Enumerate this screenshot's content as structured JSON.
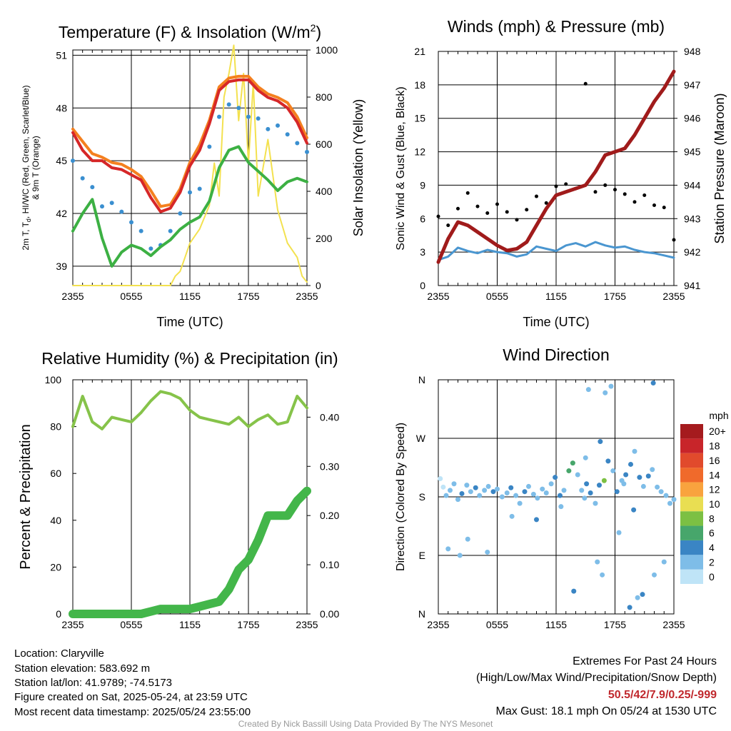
{
  "colors": {
    "temp": "#d62728",
    "dew": "#3cb043",
    "hi": "#3a8fd0",
    "t9": "#f4801f",
    "solar": "#f3e14f",
    "wind": "#4a96d0",
    "gust": "#000000",
    "pressure": "#a01b1b",
    "rh": "#86c34a",
    "precip": "#43b64a",
    "extremes": "#c0282d",
    "footer": "#999999"
  },
  "chart_data": [
    {
      "type": "line",
      "title_main": "Temperature (F) & Insolation (W/m",
      "title_sup": "2",
      "title_end": ")",
      "xlabel": "Time (UTC)",
      "ylabel_left_line1": "2m T, T",
      "ylabel_left_sub": "d",
      "ylabel_left_line1b": ", HI/WC (Red, Green, Scarlet/Blue)",
      "ylabel_left_line2": "& 9m T (Orange)",
      "ylabel_right": "Solar Insolation (Yellow)",
      "xticks": [
        "2355",
        "0555",
        "1155",
        "1755",
        "2355"
      ],
      "yticks_left": [
        "39",
        "42",
        "45",
        "48",
        "51"
      ],
      "yticks_right": [
        "0",
        "200",
        "400",
        "600",
        "800",
        "1000"
      ],
      "ylim_left": [
        37.9,
        51.3
      ],
      "ylim_right": [
        0,
        1000
      ],
      "series": [
        {
          "key": "temp",
          "x": [
            0,
            1,
            2,
            3,
            4,
            5,
            6,
            7,
            8,
            9,
            10,
            11,
            12,
            13,
            14,
            15,
            16,
            17,
            18,
            19,
            20,
            21,
            22,
            23,
            24
          ],
          "values": [
            46.6,
            45.6,
            45.0,
            45.0,
            44.6,
            44.5,
            44.2,
            43.9,
            42.9,
            42.1,
            42.3,
            43.2,
            44.7,
            45.6,
            47.1,
            49.0,
            49.5,
            49.6,
            49.6,
            49.0,
            48.6,
            48.4,
            48.0,
            47.2,
            46.0
          ]
        },
        {
          "key": "t9",
          "x": [
            0,
            1,
            2,
            3,
            4,
            5,
            6,
            7,
            8,
            9,
            10,
            11,
            12,
            13,
            14,
            15,
            16,
            17,
            18,
            19,
            20,
            21,
            22,
            23,
            24
          ],
          "values": [
            46.8,
            46.1,
            45.4,
            45.2,
            44.9,
            44.8,
            44.5,
            44.1,
            43.3,
            42.4,
            42.5,
            43.4,
            44.9,
            45.9,
            47.3,
            49.2,
            49.7,
            49.8,
            49.8,
            49.2,
            48.8,
            48.6,
            48.3,
            47.5,
            46.3
          ]
        },
        {
          "key": "hi",
          "x": [
            0,
            1,
            2,
            3,
            4,
            5,
            6,
            7,
            8,
            9,
            10,
            11,
            12,
            13,
            14,
            15,
            16,
            17,
            18,
            19,
            20,
            21,
            22,
            23,
            24
          ],
          "values": [
            45.0,
            44.0,
            43.5,
            42.4,
            42.6,
            42.1,
            41.5,
            41.0,
            40.0,
            40.2,
            41.0,
            42.0,
            43.2,
            43.4,
            45.8,
            47.5,
            48.2,
            48.0,
            47.5,
            47.4,
            46.8,
            47.0,
            46.5,
            46.0,
            45.5
          ]
        },
        {
          "key": "dew",
          "x": [
            0,
            1,
            2,
            3,
            4,
            5,
            6,
            7,
            8,
            9,
            10,
            11,
            12,
            13,
            14,
            15,
            16,
            17,
            18,
            19,
            20,
            21,
            22,
            23,
            24
          ],
          "values": [
            41.0,
            42.0,
            42.8,
            40.6,
            39.0,
            39.8,
            40.2,
            40.0,
            39.6,
            40.1,
            40.5,
            41.1,
            41.5,
            41.8,
            42.7,
            44.6,
            45.6,
            45.8,
            44.9,
            44.4,
            43.9,
            43.3,
            43.8,
            44.0,
            43.8
          ]
        },
        {
          "key": "solar",
          "axis": "right",
          "x": [
            0,
            8,
            10,
            10.5,
            11,
            11.5,
            12,
            13,
            14,
            14.5,
            15,
            15.5,
            16,
            16.5,
            17,
            17.5,
            18,
            18.5,
            19,
            20,
            21,
            22,
            23,
            23.5,
            24
          ],
          "values": [
            0,
            0,
            0,
            40,
            60,
            120,
            180,
            240,
            340,
            520,
            380,
            800,
            900,
            1020,
            700,
            900,
            520,
            860,
            380,
            620,
            320,
            180,
            120,
            40,
            15
          ]
        }
      ]
    },
    {
      "type": "line",
      "title": "Winds (mph) & Pressure (mb)",
      "xlabel": "Time (UTC)",
      "ylabel_left": "Sonic Wind & Gust (Blue, Black)",
      "ylabel_right": "Station Pressure (Maroon)",
      "xticks": [
        "2355",
        "0555",
        "1155",
        "1755",
        "2355"
      ],
      "yticks_left": [
        "0",
        "3",
        "6",
        "9",
        "12",
        "15",
        "18",
        "21"
      ],
      "yticks_right": [
        "941",
        "942",
        "943",
        "944",
        "945",
        "946",
        "947",
        "948"
      ],
      "ylim_left": [
        0,
        21
      ],
      "ylim_right": [
        941,
        948
      ],
      "series": [
        {
          "key": "wind",
          "x": [
            0,
            1,
            2,
            3,
            4,
            5,
            6,
            7,
            8,
            9,
            10,
            11,
            12,
            13,
            14,
            15,
            16,
            17,
            18,
            19,
            20,
            21,
            22,
            23,
            24
          ],
          "values": [
            2.3,
            2.6,
            3.4,
            3.1,
            2.9,
            3.2,
            3.0,
            2.9,
            2.6,
            2.8,
            3.5,
            3.3,
            3.1,
            3.6,
            3.8,
            3.5,
            3.9,
            3.6,
            3.4,
            3.5,
            3.2,
            3.0,
            2.9,
            2.7,
            2.5
          ]
        },
        {
          "key": "gust",
          "x": [
            0,
            1,
            2,
            3,
            4,
            5,
            6,
            7,
            8,
            9,
            10,
            11,
            12,
            13,
            14,
            15,
            16,
            17,
            18,
            19,
            20,
            21,
            22,
            23,
            24
          ],
          "values": [
            6.2,
            5.4,
            6.9,
            8.3,
            7.1,
            6.5,
            7.3,
            6.6,
            5.9,
            6.8,
            8.0,
            7.4,
            8.9,
            9.1,
            8.7,
            18.1,
            8.4,
            9.0,
            8.6,
            8.2,
            7.5,
            8.1,
            7.2,
            7.0,
            4.1
          ]
        },
        {
          "key": "pressure",
          "axis": "right",
          "x": [
            0,
            1,
            2,
            3,
            4,
            5,
            6,
            7,
            8,
            9,
            10,
            11,
            12,
            13,
            14,
            15,
            16,
            17,
            18,
            19,
            20,
            21,
            22,
            23,
            24
          ],
          "values": [
            941.7,
            942.4,
            942.9,
            942.8,
            942.6,
            942.4,
            942.2,
            942.05,
            942.1,
            942.3,
            942.8,
            943.3,
            943.7,
            943.8,
            943.9,
            944.0,
            944.4,
            944.9,
            945.0,
            945.1,
            945.5,
            946.0,
            946.5,
            946.9,
            947.4
          ]
        }
      ]
    },
    {
      "type": "line",
      "title": "Relative Humidity (%) & Precipitation (in)",
      "ylabel_left": "Percent & Precipitation",
      "xticks": [
        "2355",
        "0555",
        "1155",
        "1755",
        "2355"
      ],
      "yticks_left": [
        "0",
        "20",
        "40",
        "60",
        "80",
        "100"
      ],
      "yticks_right": [
        "0.00",
        "0.10",
        "0.20",
        "0.30",
        "0.40"
      ],
      "ylim_left": [
        0,
        100
      ],
      "ylim_right": [
        0,
        0.476
      ],
      "series": [
        {
          "key": "rh",
          "x": [
            0,
            1,
            2,
            3,
            4,
            5,
            6,
            7,
            8,
            9,
            10,
            11,
            12,
            13,
            14,
            15,
            16,
            17,
            18,
            19,
            20,
            21,
            22,
            23,
            24
          ],
          "values": [
            80,
            93,
            82,
            79,
            84,
            83,
            82,
            86,
            91,
            95,
            94,
            92,
            87,
            84,
            83,
            82,
            81,
            84,
            80,
            83,
            85,
            81,
            82,
            93,
            88
          ]
        },
        {
          "key": "precip",
          "axis": "right",
          "x": [
            0,
            1,
            2,
            3,
            4,
            5,
            6,
            7,
            8,
            9,
            10,
            11,
            12,
            13,
            14,
            15,
            16,
            17,
            18,
            19,
            20,
            21,
            22,
            23,
            24
          ],
          "values": [
            0,
            0,
            0,
            0,
            0,
            0,
            0,
            0,
            0.005,
            0.01,
            0.01,
            0.01,
            0.01,
            0.015,
            0.02,
            0.025,
            0.05,
            0.09,
            0.11,
            0.15,
            0.2,
            0.2,
            0.2,
            0.23,
            0.25
          ]
        }
      ]
    },
    {
      "type": "scatter",
      "title": "Wind Direction",
      "ylabel_left": "Direction (Colored By Speed)",
      "xticks": [
        "2355",
        "0555",
        "1155",
        "1755",
        "2355"
      ],
      "yticks_left": [
        "N",
        "E",
        "S",
        "W",
        "N"
      ],
      "ylim_left": [
        0,
        360
      ],
      "legend_title": "mph",
      "legend": [
        {
          "label": "0",
          "color": "#bfe4f7"
        },
        {
          "label": "2",
          "color": "#7ebde8"
        },
        {
          "label": "4",
          "color": "#3a85c4"
        },
        {
          "label": "6",
          "color": "#47a66b"
        },
        {
          "label": "8",
          "color": "#7cc043"
        },
        {
          "label": "10",
          "color": "#e9de52"
        },
        {
          "label": "12",
          "color": "#f9a33e"
        },
        {
          "label": "14",
          "color": "#f06a2b"
        },
        {
          "label": "16",
          "color": "#e14a2c"
        },
        {
          "label": "18",
          "color": "#c8252a"
        },
        {
          "label": "20+",
          "color": "#a51b1e"
        }
      ],
      "points": {
        "x": [
          0.2,
          0.5,
          0.8,
          1.2,
          1.6,
          2.0,
          2.4,
          2.9,
          3.3,
          3.8,
          4.2,
          4.7,
          5.1,
          5.6,
          6.0,
          6.5,
          7.0,
          7.4,
          7.9,
          8.3,
          8.8,
          9.2,
          9.7,
          10.1,
          10.6,
          11.0,
          11.5,
          11.9,
          12.4,
          12.8,
          13.3,
          13.7,
          14.2,
          14.6,
          15.1,
          15.5,
          16.0,
          16.4,
          16.9,
          17.3,
          17.8,
          18.2,
          18.7,
          19.1,
          19.6,
          20.0,
          20.5,
          20.9,
          21.4,
          21.8,
          22.3,
          22.7,
          23.2,
          23.6,
          24.0,
          1.0,
          3.0,
          5.0,
          7.5,
          10.0,
          12.5,
          15.0,
          16.5,
          17.6,
          18.4,
          19.5,
          20.8,
          21.9,
          23.0,
          15.3,
          16.2,
          17.0,
          18.9,
          20.3,
          22.0,
          2.2,
          13.8,
          14.9,
          16.7,
          19.9
        ],
        "y": [
          208,
          195,
          182,
          190,
          200,
          176,
          185,
          198,
          188,
          194,
          182,
          190,
          196,
          188,
          192,
          180,
          186,
          194,
          182,
          170,
          188,
          196,
          184,
          178,
          192,
          186,
          200,
          210,
          182,
          190,
          220,
          232,
          214,
          190,
          200,
          186,
          170,
          198,
          205,
          235,
          220,
          188,
          205,
          214,
          230,
          250,
          210,
          196,
          212,
          222,
          195,
          188,
          182,
          170,
          176,
          100,
          115,
          95,
          150,
          145,
          165,
          240,
          265,
          350,
          125,
          10,
          30,
          355,
          80,
          345,
          80,
          340,
          200,
          25,
          60,
          90,
          35,
          178,
          60,
          160
        ],
        "speed": [
          1,
          1,
          2,
          3,
          2,
          3,
          4,
          3,
          3,
          4,
          2,
          3,
          3,
          4,
          3,
          2,
          3,
          4,
          3,
          3,
          4,
          3,
          3,
          2,
          3,
          3,
          3,
          4,
          5,
          3,
          6,
          7,
          3,
          2,
          4,
          5,
          3,
          4,
          8,
          4,
          3,
          4,
          3,
          4,
          5,
          3,
          4,
          3,
          4,
          3,
          2,
          3,
          3,
          2,
          2,
          2,
          3,
          3,
          3,
          4,
          3,
          3,
          4,
          2,
          3,
          4,
          4,
          4,
          3,
          2,
          3,
          3,
          2,
          3,
          2,
          2,
          4,
          3,
          3,
          4
        ]
      }
    }
  ],
  "info": {
    "location": "Location: Claryville",
    "elevation": "Station elevation: 583.692 m",
    "latlon": "Station lat/lon: 41.9789; -74.5173",
    "created": "Figure created on Sat, 2025-05-24, at 23:59 UTC",
    "recent": "Most recent data timestamp: 2025/05/24 23:55:00"
  },
  "extremes": {
    "heading": "Extremes For Past 24 Hours",
    "legend": "(High/Low/Max Wind/Precipitation/Snow Depth)",
    "values": "50.5/42/7.9/0.25/-999",
    "max_gust": "Max Gust: 18.1 mph On 05/24 at 1530 UTC"
  },
  "footer": "Created By Nick Bassill Using Data Provided By The NYS Mesonet"
}
